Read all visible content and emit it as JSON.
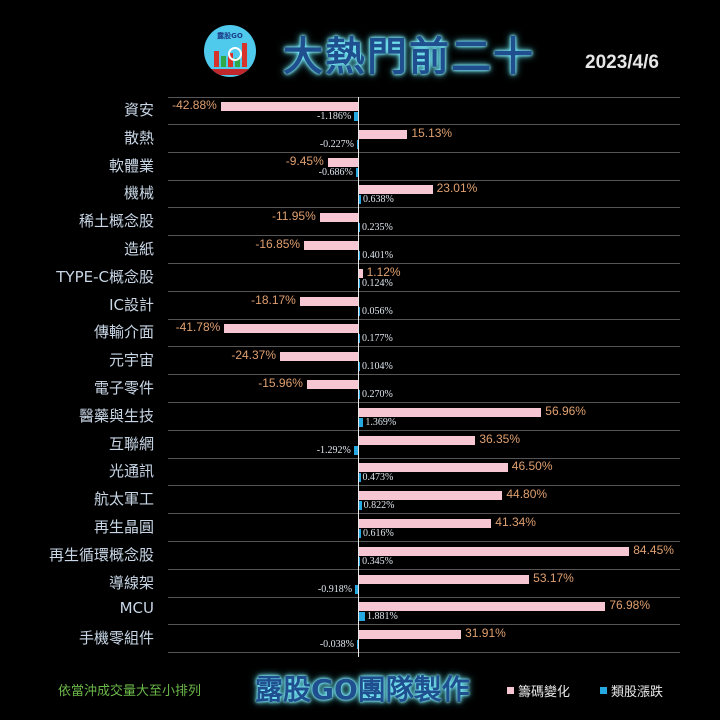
{
  "header": {
    "logo_text": "露股GO",
    "title": "大熱門前二十",
    "date": "2023/4/6"
  },
  "footer": {
    "sort_note": "依當沖成交量大至小排列",
    "maker": "露股GO團隊製作",
    "legend": [
      {
        "label": "籌碼變化",
        "color": "#f7c6d3"
      },
      {
        "label": "類股漲跌",
        "color": "#26a8e0"
      }
    ]
  },
  "colors": {
    "chip_bar": "#f7c6d3",
    "sector_bar": "#26a8e0",
    "chip_label": "#e0a070",
    "sector_label": "#dde6ee",
    "title_glow": "#5ce8ff"
  },
  "chart_data": {
    "type": "bar",
    "orientation": "horizontal",
    "title": "大熱門前二十",
    "subtitle": "2023/4/6",
    "xlabel": "",
    "ylabel": "",
    "grid": true,
    "legend_position": "bottom-right",
    "categories": [
      "資安",
      "散熱",
      "軟體業",
      "機械",
      "稀土概念股",
      "造紙",
      "TYPE-C概念股",
      "IC設計",
      "傳輸介面",
      "元宇宙",
      "電子零件",
      "醫藥與生技",
      "互聯網",
      "光通訊",
      "航太軍工",
      "再生晶圓",
      "再生循環概念股",
      "導線架",
      "MCU",
      "手機零組件"
    ],
    "series": [
      {
        "name": "籌碼變化",
        "unit": "%",
        "values": [
          -42.88,
          15.13,
          -9.45,
          23.01,
          -11.95,
          -16.85,
          1.12,
          -18.17,
          -41.78,
          -24.37,
          -15.96,
          56.96,
          36.35,
          46.5,
          44.8,
          41.34,
          84.45,
          53.17,
          76.98,
          31.91
        ],
        "labels": [
          "-42.88%",
          "15.13%",
          "-9.45%",
          "23.01%",
          "-11.95%",
          "-16.85%",
          "1.12%",
          "-18.17%",
          "-41.78%",
          "-24.37%",
          "-15.96%",
          "56.96%",
          "36.35%",
          "46.50%",
          "44.80%",
          "41.34%",
          "84.45%",
          "53.17%",
          "76.98%",
          "31.91%"
        ]
      },
      {
        "name": "類股漲跌",
        "unit": "%",
        "values": [
          -1.186,
          -0.227,
          -0.686,
          0.638,
          0.235,
          0.401,
          0.124,
          0.056,
          0.177,
          0.104,
          0.27,
          1.369,
          -1.292,
          0.473,
          0.822,
          0.616,
          0.345,
          -0.918,
          1.881,
          -0.038
        ],
        "labels": [
          "-1.186%",
          "-0.227%",
          "-0.686%",
          "0.638%",
          "0.235%",
          "0.401%",
          "0.124%",
          "0.056%",
          "0.177%",
          "0.104%",
          "0.270%",
          "1.369%",
          "-1.292%",
          "0.473%",
          "0.822%",
          "0.616%",
          "0.345%",
          "-0.918%",
          "1.881%",
          "-0.038%"
        ]
      }
    ]
  }
}
